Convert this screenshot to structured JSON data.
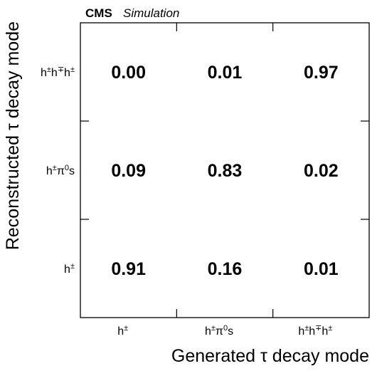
{
  "header": {
    "experiment": "CMS",
    "status": "Simulation"
  },
  "chart_data": {
    "type": "heatmap",
    "xlabel": "Generated τ decay mode",
    "ylabel": "Reconstructed τ decay mode",
    "x_categories": [
      "h±",
      "h±π0s",
      "h±h∓h±"
    ],
    "y_categories": [
      "h±",
      "h±π0s",
      "h±h∓h±"
    ],
    "x_tick_labels": [
      {
        "base": "h",
        "sup": "±",
        "rest": ""
      },
      {
        "base": "h",
        "sup": "±",
        "rest": "π",
        "sup2": "0",
        "tail": "s"
      },
      {
        "base": "h",
        "sup": "±",
        "rest": "h",
        "sup2": "∓",
        "tail": "h",
        "sup3": "±"
      }
    ],
    "y_tick_labels": [
      {
        "base": "h",
        "sup": "±",
        "rest": ""
      },
      {
        "base": "h",
        "sup": "±",
        "rest": "π",
        "sup2": "0",
        "tail": "s"
      },
      {
        "base": "h",
        "sup": "±",
        "rest": "h",
        "sup2": "∓",
        "tail": "h",
        "sup3": "±"
      }
    ],
    "values": [
      [
        0.91,
        0.16,
        0.01
      ],
      [
        0.09,
        0.83,
        0.02
      ],
      [
        0.0,
        0.01,
        0.97
      ]
    ],
    "value_format": "0.00",
    "colorscale": "none",
    "grid": false
  }
}
